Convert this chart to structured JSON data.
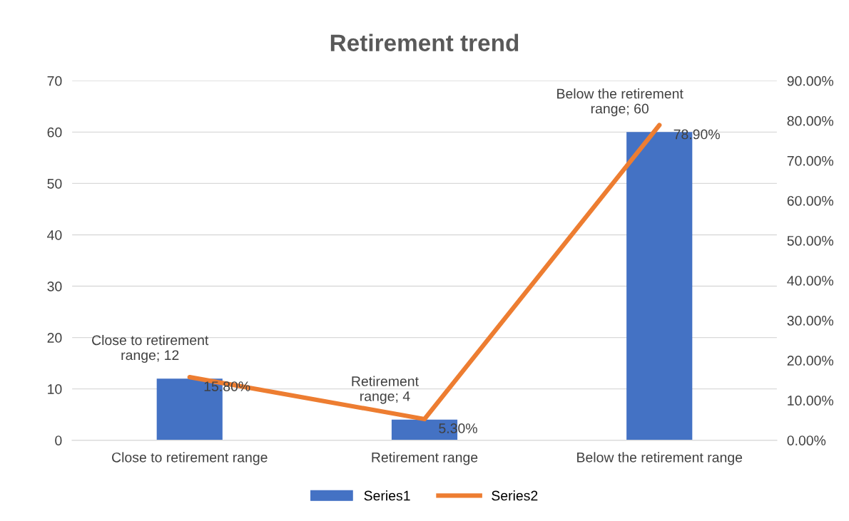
{
  "chart_data": {
    "type": "bar",
    "title": "Retirement trend",
    "categories": [
      "Close to retirement range",
      "Retirement range",
      "Below the retirement range"
    ],
    "series": [
      {
        "name": "Series1",
        "color": "#4472c4",
        "values": [
          12,
          4,
          60
        ],
        "value_labels": [
          "Close to retirement range; 12",
          "Retirement range; 4",
          "Below the retirement range; 60"
        ]
      },
      {
        "name": "Series2",
        "type": "line",
        "axis": "y2",
        "color": "#ed7d31",
        "values": [
          15.8,
          5.3,
          78.9
        ],
        "value_labels": [
          "15.80%",
          "5.30%",
          "78.90%"
        ]
      }
    ],
    "ylim": [
      0,
      70
    ],
    "yticks": [
      0,
      10,
      20,
      30,
      40,
      50,
      60,
      70
    ],
    "y2lim": [
      0,
      90
    ],
    "y2ticks": [
      {
        "value": 0,
        "label": "0.00%"
      },
      {
        "value": 10,
        "label": "10.00%"
      },
      {
        "value": 20,
        "label": "20.00%"
      },
      {
        "value": 30,
        "label": "30.00%"
      },
      {
        "value": 40,
        "label": "40.00%"
      },
      {
        "value": 50,
        "label": "50.00%"
      },
      {
        "value": 60,
        "label": "60.00%"
      },
      {
        "value": 70,
        "label": "70.00%"
      },
      {
        "value": 80,
        "label": "80.00%"
      },
      {
        "value": 90,
        "label": "90.00%"
      }
    ],
    "grid": "y",
    "legend": "bottom",
    "marker": "none",
    "line_style": "solid"
  }
}
